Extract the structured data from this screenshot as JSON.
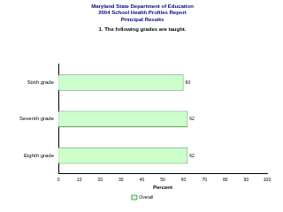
{
  "chart_data": {
    "type": "bar",
    "orientation": "horizontal",
    "title": [
      "Maryland State Department of Education",
      "2004 School Health Profiles Report",
      "Principal Results"
    ],
    "subtitle": "1. The following grades are taught.",
    "xlabel": "Percent",
    "categories": [
      "Sixth grade",
      "Seventh grade",
      "Eighth grade"
    ],
    "series": [
      {
        "name": "Overall",
        "color": "#ccffcc",
        "values": [
          60,
          62,
          62
        ]
      }
    ],
    "xlim": [
      0,
      100
    ],
    "xticks": [
      0,
      10,
      20,
      30,
      40,
      50,
      60,
      70,
      80,
      90,
      100
    ],
    "grid": false,
    "legend": "bottom",
    "data_labels": true
  }
}
